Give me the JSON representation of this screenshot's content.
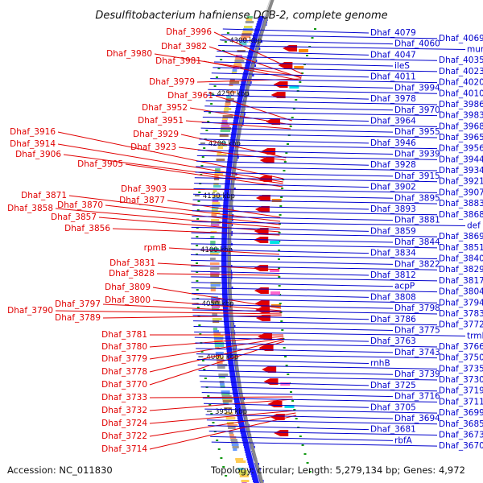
{
  "title": "Desulfitobacterium hafniense DCB-2, complete genome",
  "accession": "Accession: NC_011830",
  "summary": "Topology: circular; Length: 5,279,134 bp; Genes: 4,972",
  "colors": {
    "backbone": "#888888",
    "forward_genes": "#1a1aff",
    "reverse_genes": "#e00000",
    "left_labels": "#e00000",
    "right_labels": "#0000cc",
    "gc_marks": "#119911"
  },
  "scale_ticks": [
    "4300 kbp",
    "4250 kbp",
    "4200 kbp",
    "4150 kbp",
    "4100 kbp",
    "4050 kbp",
    "4000 kbp",
    "3950 kbp"
  ],
  "left_labels": [
    "Dhaf_3996",
    "Dhaf_3982",
    "Dhaf_3980",
    "Dhaf_3981",
    "Dhaf_3979",
    "Dhaf_3961",
    "Dhaf_3952",
    "Dhaf_3951",
    "Dhaf_3929",
    "Dhaf_3916",
    "Dhaf_3914",
    "Dhaf_3923",
    "Dhaf_3906",
    "Dhaf_3905",
    "Dhaf_3903",
    "Dhaf_3871",
    "Dhaf_3870",
    "Dhaf_3877",
    "Dhaf_3858",
    "Dhaf_3857",
    "Dhaf_3856",
    "rpmB",
    "Dhaf_3831",
    "Dhaf_3828",
    "Dhaf_3809",
    "Dhaf_3800",
    "Dhaf_3797",
    "Dhaf_3790",
    "Dhaf_3789",
    "Dhaf_3781",
    "Dhaf_3780",
    "Dhaf_3779",
    "Dhaf_3778",
    "Dhaf_3770",
    "Dhaf_3733",
    "Dhaf_3732",
    "Dhaf_3724",
    "Dhaf_3722",
    "Dhaf_3714"
  ],
  "right_labels": [
    "Dhaf_4079",
    "Dhaf_4069",
    "Dhaf_4060",
    "murD",
    "Dhaf_4047",
    "Dhaf_4035",
    "ileS",
    "Dhaf_4023",
    "Dhaf_4011",
    "Dhaf_4020",
    "Dhaf_3994",
    "Dhaf_4010",
    "Dhaf_3978",
    "Dhaf_3986",
    "Dhaf_3970",
    "Dhaf_3983",
    "Dhaf_3964",
    "Dhaf_3968",
    "Dhaf_3955",
    "Dhaf_3965",
    "Dhaf_3946",
    "Dhaf_3956",
    "Dhaf_3939",
    "Dhaf_3944",
    "Dhaf_3928",
    "Dhaf_3934",
    "Dhaf_3915",
    "Dhaf_3921",
    "Dhaf_3902",
    "Dhaf_3907",
    "Dhaf_3895",
    "Dhaf_3883",
    "Dhaf_3893",
    "Dhaf_3868",
    "Dhaf_3881",
    "def",
    "Dhaf_3859",
    "Dhaf_3869",
    "Dhaf_3844",
    "Dhaf_3851",
    "Dhaf_3834",
    "Dhaf_3840",
    "Dhaf_3822",
    "Dhaf_3829",
    "Dhaf_3812",
    "Dhaf_3817",
    "acpP",
    "Dhaf_3804",
    "Dhaf_3808",
    "Dhaf_3794",
    "Dhaf_3798",
    "Dhaf_3783",
    "Dhaf_3786",
    "Dhaf_3772",
    "Dhaf_3775",
    "trmD",
    "Dhaf_3763",
    "Dhaf_3766",
    "Dhaf_3743",
    "Dhaf_3750",
    "rnhB",
    "Dhaf_3735",
    "Dhaf_3739",
    "Dhaf_3730",
    "Dhaf_3725",
    "Dhaf_3719",
    "Dhaf_3716",
    "Dhaf_3711",
    "Dhaf_3705",
    "Dhaf_3699",
    "Dhaf_3694",
    "Dhaf_3685",
    "Dhaf_3681",
    "Dhaf_3673",
    "rbfA",
    "Dhaf_3670"
  ]
}
